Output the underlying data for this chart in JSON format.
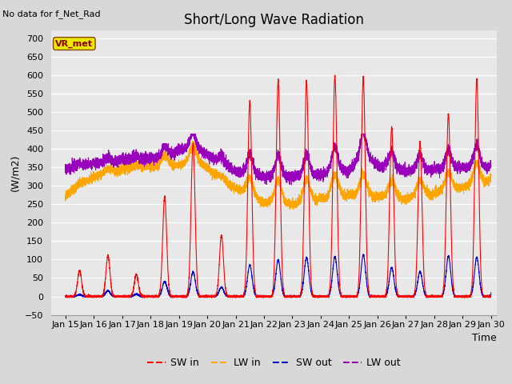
{
  "title": "Short/Long Wave Radiation",
  "top_left_text": "No data for f_Net_Rad",
  "ylabel": "(W/m2)",
  "xlabel": "Time",
  "ylim": [
    -50,
    720
  ],
  "yticks": [
    -50,
    0,
    50,
    100,
    150,
    200,
    250,
    300,
    350,
    400,
    450,
    500,
    550,
    600,
    650,
    700
  ],
  "xlim_days": [
    14.5,
    30.2
  ],
  "xtick_days": [
    15,
    16,
    17,
    18,
    19,
    20,
    21,
    22,
    23,
    24,
    25,
    26,
    27,
    28,
    29,
    30
  ],
  "xtick_labels": [
    "Jan 15",
    "Jan 16",
    "Jan 17",
    "Jan 18",
    "Jan 19",
    "Jan 20",
    "Jan 21",
    "Jan 22",
    "Jan 23",
    "Jan 24",
    "Jan 25",
    "Jan 26",
    "Jan 27",
    "Jan 28",
    "Jan 29",
    "Jan 30"
  ],
  "legend_box_label": "VR_met",
  "legend_box_color": "#e8e800",
  "legend_box_edge_color": "#8B4513",
  "legend_box_text_color": "#8B0000",
  "sw_in_color": "#ff0000",
  "lw_in_color": "#ffa500",
  "sw_out_color": "#0000cc",
  "lw_out_color": "#9900bb",
  "background_color": "#d8d8d8",
  "plot_bg_color": "#e8e8e8",
  "grid_color": "#ffffff",
  "title_fontsize": 12,
  "label_fontsize": 9,
  "tick_fontsize": 8
}
